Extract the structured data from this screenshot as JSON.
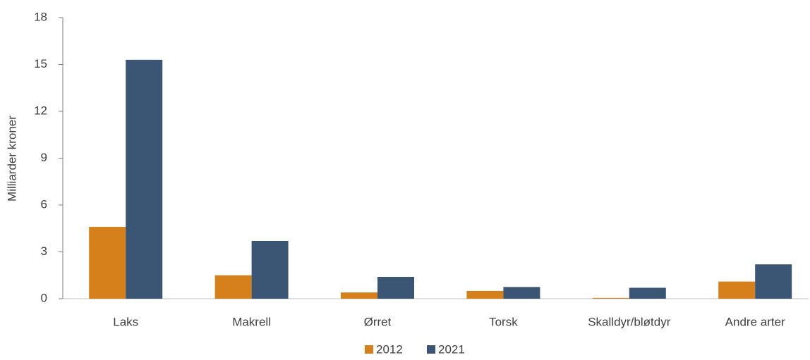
{
  "chart_data": {
    "type": "bar",
    "y_label": "Milliarder kroner",
    "categories": [
      "Laks",
      "Makrell",
      "Ørret",
      "Torsk",
      "Skalldyr/bløtdyr",
      "Andre arter"
    ],
    "series": [
      {
        "name": "2012",
        "color": "#d6801c",
        "values": [
          4.6,
          1.5,
          0.4,
          0.5,
          0.05,
          1.1
        ]
      },
      {
        "name": "2021",
        "color": "#3b5675",
        "values": [
          15.3,
          3.7,
          1.4,
          0.75,
          0.7,
          2.2
        ]
      }
    ],
    "ylim": [
      0,
      18
    ],
    "yticks": [
      0,
      3,
      6,
      9,
      12,
      15,
      18
    ],
    "legend": "bottom"
  }
}
